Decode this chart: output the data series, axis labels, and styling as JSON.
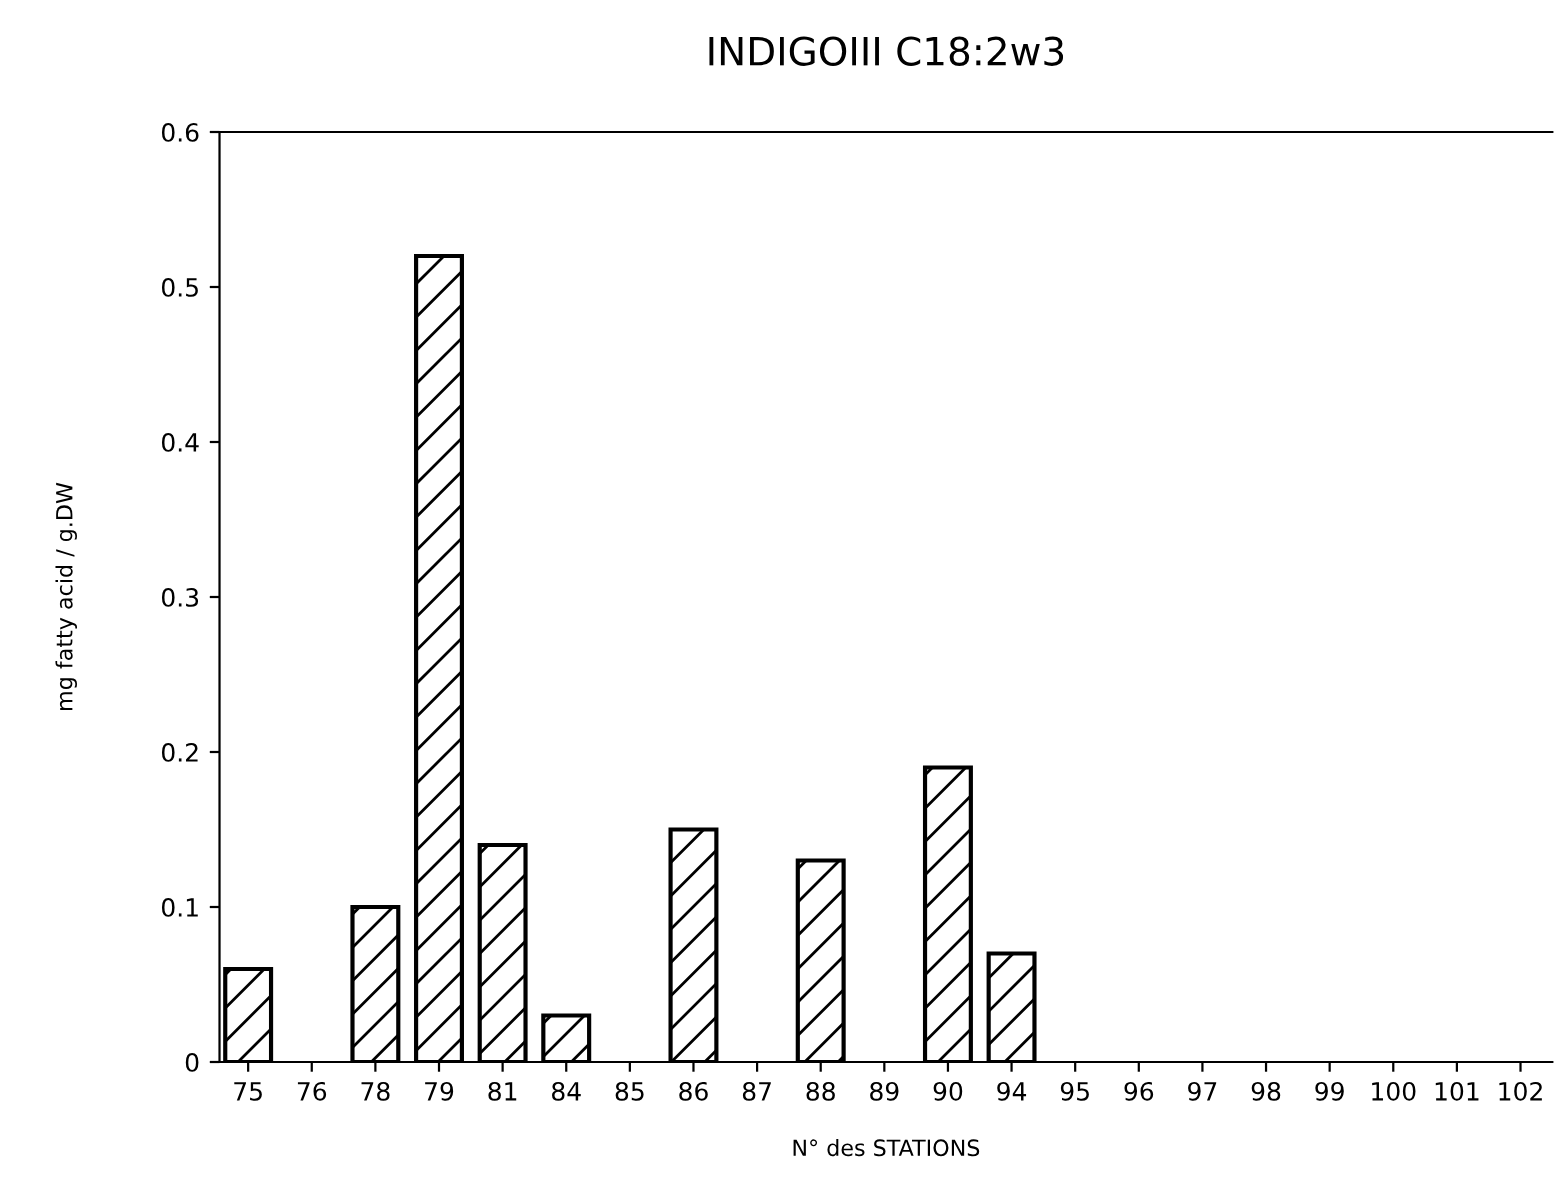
{
  "chart_data": {
    "type": "bar",
    "title": "INDIGOIII C18:2w3",
    "xlabel": "N° des STATIONS",
    "ylabel": "mg fatty acid / g.DW",
    "categories": [
      "75",
      "76",
      "78",
      "79",
      "81",
      "84",
      "85",
      "86",
      "87",
      "88",
      "89",
      "90",
      "94",
      "95",
      "96",
      "97",
      "98",
      "99",
      "100",
      "101",
      "102"
    ],
    "values": [
      0.06,
      null,
      0.1,
      0.52,
      0.14,
      0.03,
      null,
      0.15,
      null,
      0.13,
      null,
      0.19,
      0.07,
      null,
      null,
      null,
      null,
      null,
      null,
      null,
      null
    ],
    "color": "#000000",
    "ylim": [
      0,
      0.6
    ],
    "yticks": [
      0,
      0.1,
      0.2,
      0.3,
      0.4,
      0.5,
      0.6
    ],
    "grid": false
  }
}
